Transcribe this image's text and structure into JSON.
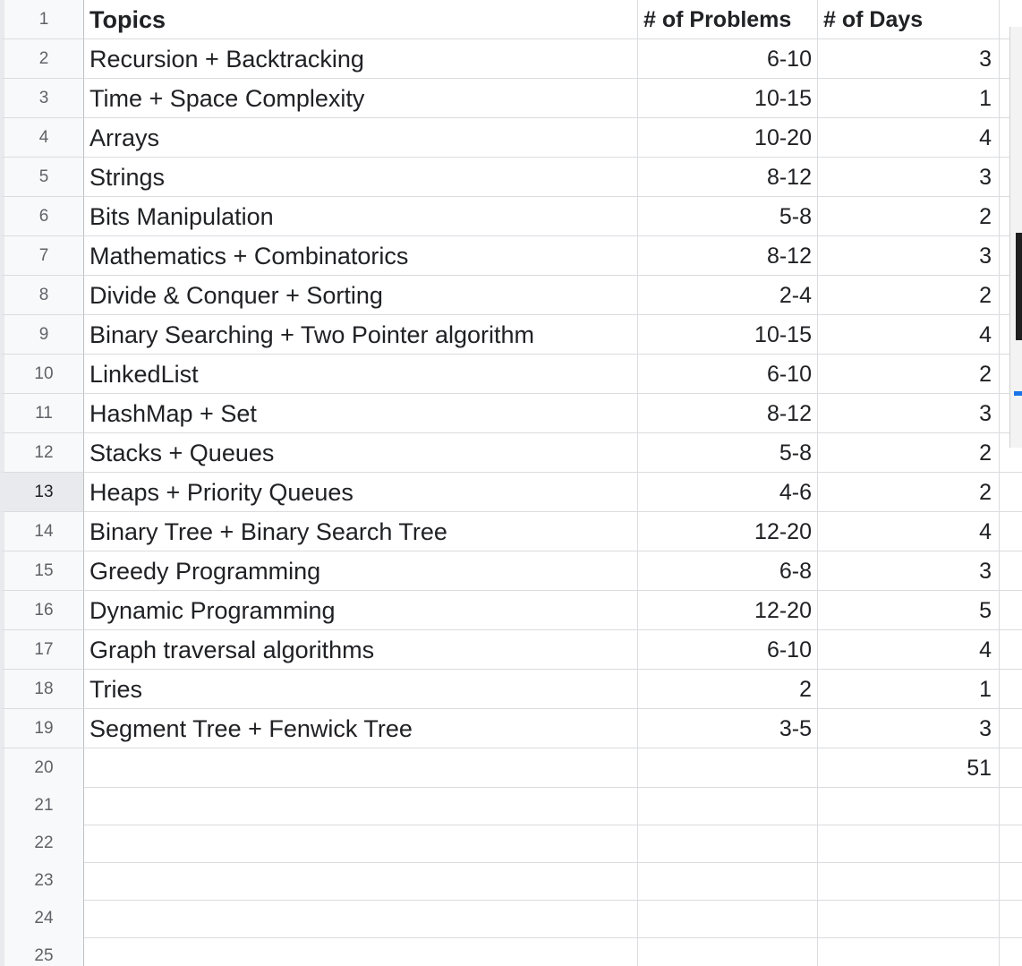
{
  "spreadsheet": {
    "header": {
      "row_number": "1",
      "topics": "Topics",
      "problems": "# of Problems",
      "days": "# of Days"
    },
    "rows": [
      {
        "row_number": "2",
        "topic": "Recursion + Backtracking",
        "problems": "6-10",
        "days": "3"
      },
      {
        "row_number": "3",
        "topic": "Time + Space Complexity",
        "problems": "10-15",
        "days": "1"
      },
      {
        "row_number": "4",
        "topic": "Arrays",
        "problems": "10-20",
        "days": "4"
      },
      {
        "row_number": "5",
        "topic": "Strings",
        "problems": "8-12",
        "days": "3"
      },
      {
        "row_number": "6",
        "topic": "Bits Manipulation",
        "problems": "5-8",
        "days": "2"
      },
      {
        "row_number": "7",
        "topic": "Mathematics + Combinatorics",
        "problems": "8-12",
        "days": "3"
      },
      {
        "row_number": "8",
        "topic": "Divide & Conquer + Sorting",
        "problems": "2-4",
        "days": "2"
      },
      {
        "row_number": "9",
        "topic": "Binary Searching + Two Pointer algorithm",
        "problems": "10-15",
        "days": "4"
      },
      {
        "row_number": "10",
        "topic": "LinkedList",
        "problems": "6-10",
        "days": "2"
      },
      {
        "row_number": "11",
        "topic": "HashMap + Set",
        "problems": "8-12",
        "days": "3"
      },
      {
        "row_number": "12",
        "topic": "Stacks + Queues",
        "problems": "5-8",
        "days": "2"
      },
      {
        "row_number": "13",
        "topic": "Heaps + Priority Queues",
        "problems": "4-6",
        "days": "2"
      },
      {
        "row_number": "14",
        "topic": "Binary Tree + Binary Search Tree",
        "problems": "12-20",
        "days": "4"
      },
      {
        "row_number": "15",
        "topic": "Greedy Programming",
        "problems": "6-8",
        "days": "3"
      },
      {
        "row_number": "16",
        "topic": "Dynamic Programming",
        "problems": "12-20",
        "days": "5"
      },
      {
        "row_number": "17",
        "topic": "Graph traversal algorithms",
        "problems": "6-10",
        "days": "4"
      },
      {
        "row_number": "18",
        "topic": "Tries",
        "problems": "2",
        "days": "1"
      },
      {
        "row_number": "19",
        "topic": "Segment Tree + Fenwick Tree",
        "problems": "3-5",
        "days": "3"
      },
      {
        "row_number": "20",
        "topic": "",
        "problems": "",
        "days": "51"
      },
      {
        "row_number": "21",
        "topic": "",
        "problems": "",
        "days": ""
      },
      {
        "row_number": "22",
        "topic": "",
        "problems": "",
        "days": ""
      },
      {
        "row_number": "23",
        "topic": "",
        "problems": "",
        "days": ""
      },
      {
        "row_number": "24",
        "topic": "",
        "problems": "",
        "days": ""
      },
      {
        "row_number": "25",
        "topic": "",
        "problems": "",
        "days": ""
      }
    ],
    "selected_row": "13"
  },
  "colors": {
    "gridline": "#dadce0",
    "row_header_bg": "#f8f9fa",
    "row_header_selected_bg": "#e8eaed",
    "text": "#202124"
  }
}
